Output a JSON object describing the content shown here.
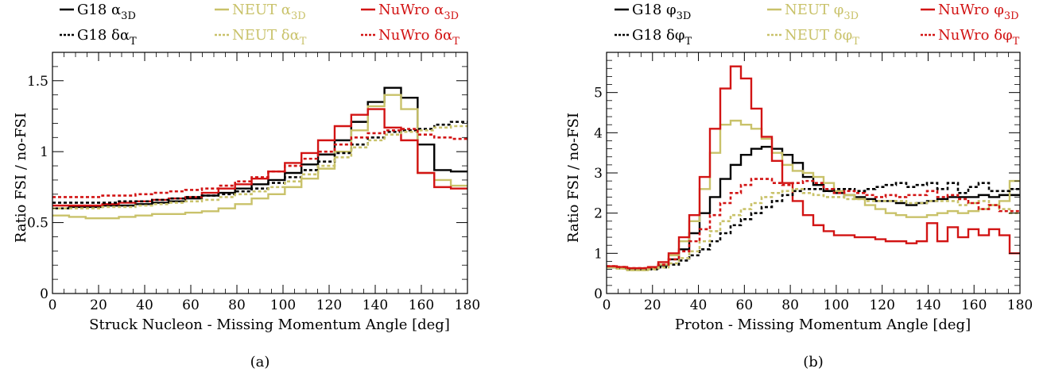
{
  "colors": {
    "G18": "#000000",
    "NEUT": "#c9c26a",
    "NuWro": "#d21414"
  },
  "chart_data": [
    {
      "type": "line",
      "step": true,
      "caption": "(a)",
      "xlabel": "Struck Nucleon - Missing Momentum Angle [deg]",
      "ylabel": "Ratio FSI / no-FSI",
      "xlim": [
        0,
        180
      ],
      "ylim": [
        0,
        1.7
      ],
      "xticks": [
        0,
        20,
        40,
        60,
        80,
        100,
        120,
        140,
        160,
        180
      ],
      "xtick_labels": [
        "0",
        "20",
        "40",
        "60",
        "80",
        "100",
        "120",
        "140",
        "160",
        "180"
      ],
      "yticks": [
        0,
        0.5,
        1,
        1.5
      ],
      "ytick_labels": [
        "0",
        "0.5",
        "1",
        "1.5"
      ],
      "bin_edges": [
        0,
        7.2,
        14.4,
        21.6,
        28.8,
        36,
        43.2,
        50.4,
        57.6,
        64.8,
        72,
        79.2,
        86.4,
        93.6,
        100.8,
        108,
        115.2,
        122.4,
        129.6,
        136.8,
        144,
        151.2,
        158.4,
        165.6,
        172.8,
        180
      ],
      "series": [
        {
          "name": "G18 α_3D",
          "legend_main": "G18 α",
          "legend_sub": "3D",
          "generator": "G18",
          "style": "solid",
          "values": [
            0.6,
            0.61,
            0.61,
            0.62,
            0.62,
            0.63,
            0.64,
            0.65,
            0.67,
            0.69,
            0.71,
            0.74,
            0.77,
            0.8,
            0.85,
            0.91,
            0.98,
            1.08,
            1.21,
            1.35,
            1.45,
            1.38,
            1.05,
            0.87,
            0.86
          ]
        },
        {
          "name": "NEUT α_3D",
          "legend_main": "NEUT α",
          "legend_sub": "3D",
          "generator": "NEUT",
          "style": "solid",
          "values": [
            0.55,
            0.54,
            0.53,
            0.53,
            0.54,
            0.55,
            0.56,
            0.56,
            0.57,
            0.58,
            0.6,
            0.63,
            0.67,
            0.7,
            0.75,
            0.81,
            0.88,
            1.0,
            1.15,
            1.32,
            1.4,
            1.3,
            0.85,
            0.8,
            0.76
          ]
        },
        {
          "name": "NuWro α_3D",
          "legend_main": "NuWro α",
          "legend_sub": "3D",
          "generator": "NuWro",
          "style": "solid",
          "values": [
            0.62,
            0.62,
            0.62,
            0.63,
            0.64,
            0.65,
            0.66,
            0.67,
            0.68,
            0.71,
            0.74,
            0.77,
            0.81,
            0.86,
            0.92,
            0.99,
            1.08,
            1.18,
            1.26,
            1.3,
            1.17,
            1.08,
            0.85,
            0.75,
            0.74
          ]
        },
        {
          "name": "G18 δα_T",
          "legend_main": "G18 δα",
          "legend_sub": "T",
          "generator": "G18",
          "style": "dashed",
          "values": [
            0.64,
            0.64,
            0.64,
            0.64,
            0.65,
            0.65,
            0.66,
            0.67,
            0.68,
            0.69,
            0.7,
            0.72,
            0.74,
            0.78,
            0.82,
            0.87,
            0.93,
            0.99,
            1.05,
            1.1,
            1.14,
            1.15,
            1.16,
            1.19,
            1.21
          ]
        },
        {
          "name": "NEUT δα_T",
          "legend_main": "NEUT δα",
          "legend_sub": "T",
          "generator": "NEUT",
          "style": "dashed",
          "values": [
            0.6,
            0.6,
            0.6,
            0.61,
            0.61,
            0.62,
            0.63,
            0.64,
            0.65,
            0.66,
            0.68,
            0.7,
            0.72,
            0.75,
            0.79,
            0.84,
            0.9,
            0.96,
            1.03,
            1.08,
            1.12,
            1.14,
            1.15,
            1.17,
            1.18
          ]
        },
        {
          "name": "NuWro δα_T",
          "legend_main": "NuWro δα",
          "legend_sub": "T",
          "generator": "NuWro",
          "style": "dashed",
          "values": [
            0.68,
            0.68,
            0.68,
            0.69,
            0.69,
            0.7,
            0.71,
            0.72,
            0.73,
            0.74,
            0.76,
            0.79,
            0.82,
            0.86,
            0.9,
            0.95,
            1.0,
            1.05,
            1.1,
            1.13,
            1.15,
            1.16,
            1.12,
            1.1,
            1.09
          ]
        }
      ]
    },
    {
      "type": "line",
      "step": true,
      "caption": "(b)",
      "xlabel": "Proton - Missing Momentum Angle [deg]",
      "ylabel": "Ratio FSI / no-FSI",
      "xlim": [
        0,
        180
      ],
      "ylim": [
        0,
        6
      ],
      "xticks": [
        0,
        20,
        40,
        60,
        80,
        100,
        120,
        140,
        160,
        180
      ],
      "xtick_labels": [
        "0",
        "20",
        "40",
        "60",
        "80",
        "100",
        "120",
        "140",
        "160",
        "180"
      ],
      "yticks": [
        0,
        1,
        2,
        3,
        4,
        5
      ],
      "ytick_labels": [
        "0",
        "1",
        "2",
        "3",
        "4",
        "5"
      ],
      "bin_edges": [
        0,
        4.5,
        9,
        13.5,
        18,
        22.5,
        27,
        31.5,
        36,
        40.5,
        45,
        49.5,
        54,
        58.5,
        63,
        67.5,
        72,
        76.5,
        81,
        85.5,
        90,
        94.5,
        99,
        103.5,
        108,
        112.5,
        117,
        121.5,
        126,
        130.5,
        135,
        139.5,
        144,
        148.5,
        153,
        157.5,
        162,
        166.5,
        171,
        175.5,
        180
      ],
      "series": [
        {
          "name": "G18 φ_3D",
          "legend_main": "G18 φ",
          "legend_sub": "3D",
          "generator": "G18",
          "style": "solid",
          "values": [
            0.65,
            0.63,
            0.6,
            0.6,
            0.62,
            0.7,
            0.85,
            1.1,
            1.5,
            2.0,
            2.4,
            2.85,
            3.2,
            3.45,
            3.6,
            3.65,
            3.6,
            3.45,
            3.25,
            2.9,
            2.7,
            2.55,
            2.5,
            2.45,
            2.4,
            2.35,
            2.3,
            2.3,
            2.25,
            2.2,
            2.25,
            2.3,
            2.35,
            2.4,
            2.4,
            2.4,
            2.45,
            2.4,
            2.45,
            2.45
          ]
        },
        {
          "name": "NEUT φ_3D",
          "legend_main": "NEUT φ",
          "legend_sub": "3D",
          "generator": "NEUT",
          "style": "solid",
          "values": [
            0.65,
            0.62,
            0.58,
            0.58,
            0.62,
            0.72,
            0.95,
            1.3,
            1.8,
            2.6,
            3.5,
            4.2,
            4.3,
            4.2,
            4.1,
            3.85,
            3.5,
            3.2,
            3.05,
            3.0,
            2.9,
            2.75,
            2.55,
            2.45,
            2.35,
            2.2,
            2.1,
            2.0,
            1.95,
            1.9,
            1.9,
            1.95,
            2.0,
            2.05,
            2.0,
            2.05,
            2.1,
            2.2,
            2.3,
            2.8
          ]
        },
        {
          "name": "NuWro φ_3D",
          "legend_main": "NuWro φ",
          "legend_sub": "3D",
          "generator": "NuWro",
          "style": "solid",
          "values": [
            0.68,
            0.66,
            0.63,
            0.63,
            0.66,
            0.78,
            1.0,
            1.4,
            1.95,
            2.9,
            4.1,
            5.1,
            5.65,
            5.35,
            4.6,
            3.9,
            3.3,
            2.75,
            2.3,
            1.95,
            1.7,
            1.55,
            1.45,
            1.45,
            1.4,
            1.4,
            1.35,
            1.3,
            1.3,
            1.25,
            1.3,
            1.75,
            1.3,
            1.65,
            1.4,
            1.6,
            1.45,
            1.6,
            1.45,
            1.0
          ]
        },
        {
          "name": "G18 δφ_T",
          "legend_main": "G18 δφ",
          "legend_sub": "T",
          "generator": "G18",
          "style": "dashed",
          "values": [
            0.65,
            0.63,
            0.6,
            0.6,
            0.6,
            0.65,
            0.72,
            0.82,
            0.95,
            1.1,
            1.3,
            1.5,
            1.7,
            1.85,
            2.0,
            2.15,
            2.3,
            2.45,
            2.55,
            2.6,
            2.6,
            2.55,
            2.6,
            2.6,
            2.55,
            2.6,
            2.65,
            2.7,
            2.75,
            2.65,
            2.7,
            2.75,
            2.6,
            2.75,
            2.5,
            2.65,
            2.75,
            2.55,
            2.55,
            2.6
          ]
        },
        {
          "name": "NEUT δφ_T",
          "legend_main": "NEUT δφ",
          "legend_sub": "T",
          "generator": "NEUT",
          "style": "dashed",
          "values": [
            0.65,
            0.62,
            0.58,
            0.58,
            0.6,
            0.65,
            0.75,
            0.88,
            1.05,
            1.3,
            1.55,
            1.8,
            1.95,
            2.1,
            2.25,
            2.4,
            2.5,
            2.55,
            2.6,
            2.5,
            2.45,
            2.4,
            2.4,
            2.35,
            2.35,
            2.3,
            2.3,
            2.3,
            2.3,
            2.25,
            2.25,
            2.3,
            2.3,
            2.3,
            2.2,
            2.25,
            2.3,
            2.2,
            2.1,
            2.0
          ]
        },
        {
          "name": "NuWro δφ_T",
          "legend_main": "NuWro δφ",
          "legend_sub": "T",
          "generator": "NuWro",
          "style": "dashed",
          "values": [
            0.68,
            0.66,
            0.63,
            0.63,
            0.65,
            0.72,
            0.85,
            1.05,
            1.3,
            1.6,
            1.95,
            2.25,
            2.5,
            2.7,
            2.85,
            2.85,
            2.75,
            2.7,
            2.75,
            2.8,
            2.75,
            2.6,
            2.5,
            2.55,
            2.5,
            2.45,
            2.4,
            2.45,
            2.4,
            2.45,
            2.45,
            2.55,
            2.4,
            2.45,
            2.35,
            2.25,
            2.1,
            2.2,
            2.05,
            2.05
          ]
        }
      ]
    }
  ]
}
